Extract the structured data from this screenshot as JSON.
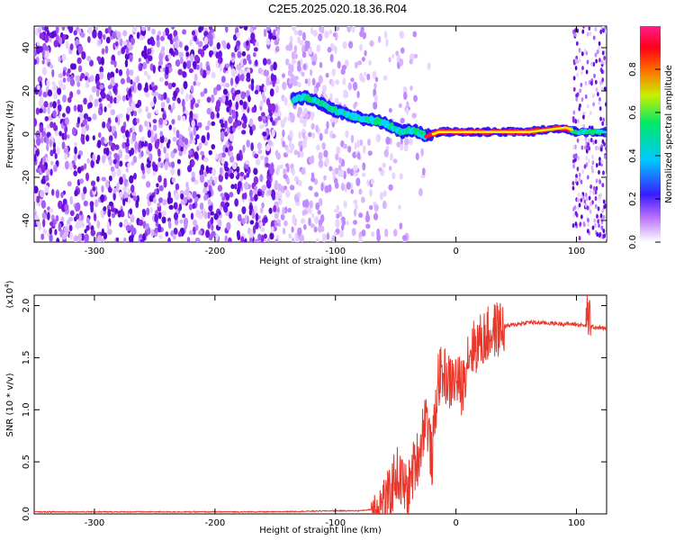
{
  "title": "C2E5.2025.020.18.36.R04",
  "chart_data": [
    {
      "type": "heatmap",
      "xlabel": "Height of straight line (km)",
      "ylabel": "Frequency (Hz)",
      "xlim": [
        -350,
        125
      ],
      "ylim": [
        -50,
        50
      ],
      "xticks": [
        "-300",
        "-200",
        "-100",
        "0",
        "100"
      ],
      "xtick_values": [
        -300,
        -200,
        -100,
        0,
        100
      ],
      "yticks": [
        "-40",
        "-20",
        "0",
        "20",
        "40"
      ],
      "ytick_values": [
        -40,
        -20,
        0,
        20,
        40
      ],
      "colorbar": {
        "label": "Normalized spectral amplitude",
        "ticks": [
          "0.0",
          "0.2",
          "0.4",
          "0.6",
          "0.8"
        ],
        "tick_values": [
          0,
          0.2,
          0.4,
          0.6,
          0.8
        ],
        "range": [
          0,
          1
        ]
      },
      "noise_region_km": [
        -350,
        -80
      ],
      "signal_track": [
        {
          "x": -135,
          "y": 16
        },
        {
          "x": -125,
          "y": 17
        },
        {
          "x": -115,
          "y": 15
        },
        {
          "x": -105,
          "y": 12
        },
        {
          "x": -95,
          "y": 10
        },
        {
          "x": -85,
          "y": 8
        },
        {
          "x": -75,
          "y": 7
        },
        {
          "x": -65,
          "y": 6
        },
        {
          "x": -55,
          "y": 4
        },
        {
          "x": -45,
          "y": 1
        },
        {
          "x": -35,
          "y": 2
        },
        {
          "x": -25,
          "y": -1
        },
        {
          "x": -15,
          "y": 1
        },
        {
          "x": 0,
          "y": 1
        },
        {
          "x": 20,
          "y": 1
        },
        {
          "x": 40,
          "y": 1
        },
        {
          "x": 60,
          "y": 1
        },
        {
          "x": 75,
          "y": 2
        },
        {
          "x": 90,
          "y": 3
        },
        {
          "x": 100,
          "y": 1
        },
        {
          "x": 110,
          "y": 1
        },
        {
          "x": 125,
          "y": 1
        }
      ]
    },
    {
      "type": "line",
      "xlabel": "Height of straight line (km)",
      "ylabel": "SNR (10 * v/v)",
      "y_multiplier": "(x10",
      "y_multiplier_exp": "4",
      "y_multiplier_close": ")",
      "xlim": [
        -350,
        125
      ],
      "ylim": [
        0,
        2.1
      ],
      "xticks": [
        "-300",
        "-200",
        "-100",
        "0",
        "100"
      ],
      "xtick_values": [
        -300,
        -200,
        -100,
        0,
        100
      ],
      "yticks": [
        "0.0",
        "0.5",
        "1.0",
        "1.5",
        "2.0"
      ],
      "ytick_values": [
        0,
        0.5,
        1.0,
        1.5,
        2.0
      ],
      "series": [
        {
          "color": "#e8382c",
          "x": [
            -350,
            -300,
            -250,
            -200,
            -150,
            -100,
            -80,
            -65,
            -55,
            -50,
            -45,
            -40,
            -35,
            -30,
            -25,
            -20,
            -15,
            -10,
            -5,
            0,
            5,
            10,
            20,
            30,
            40,
            60,
            80,
            100,
            110,
            125
          ],
          "y": [
            0.02,
            0.02,
            0.02,
            0.02,
            0.02,
            0.03,
            0.03,
            0.05,
            0.15,
            0.4,
            0.3,
            0.2,
            0.45,
            0.6,
            1.0,
            0.5,
            1.3,
            1.35,
            1.25,
            1.3,
            1.2,
            1.55,
            1.65,
            1.75,
            1.8,
            1.84,
            1.83,
            1.82,
            1.8,
            1.78
          ]
        }
      ]
    }
  ]
}
